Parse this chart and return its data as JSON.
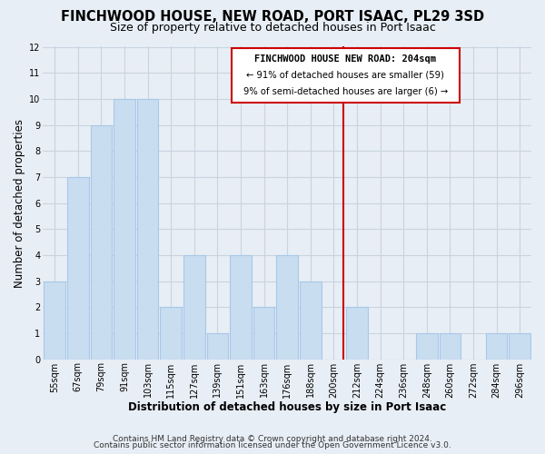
{
  "title": "FINCHWOOD HOUSE, NEW ROAD, PORT ISAAC, PL29 3SD",
  "subtitle": "Size of property relative to detached houses in Port Isaac",
  "xlabel": "Distribution of detached houses by size in Port Isaac",
  "ylabel": "Number of detached properties",
  "bar_labels": [
    "55sqm",
    "67sqm",
    "79sqm",
    "91sqm",
    "103sqm",
    "115sqm",
    "127sqm",
    "139sqm",
    "151sqm",
    "163sqm",
    "176sqm",
    "188sqm",
    "200sqm",
    "212sqm",
    "224sqm",
    "236sqm",
    "248sqm",
    "260sqm",
    "272sqm",
    "284sqm",
    "296sqm"
  ],
  "bar_values": [
    3,
    7,
    9,
    10,
    10,
    2,
    4,
    1,
    4,
    2,
    4,
    3,
    0,
    2,
    0,
    0,
    1,
    1,
    0,
    1,
    1
  ],
  "bar_color": "#c8ddf0",
  "bar_edge_color": "#a8c8e8",
  "ylim": [
    0,
    12
  ],
  "yticks": [
    0,
    1,
    2,
    3,
    4,
    5,
    6,
    7,
    8,
    9,
    10,
    11,
    12
  ],
  "vline_color": "#cc0000",
  "annotation_text_line1": "FINCHWOOD HOUSE NEW ROAD: 204sqm",
  "annotation_text_line2": "← 91% of detached houses are smaller (59)",
  "annotation_text_line3": "9% of semi-detached houses are larger (6) →",
  "footer_line1": "Contains HM Land Registry data © Crown copyright and database right 2024.",
  "footer_line2": "Contains public sector information licensed under the Open Government Licence v3.0.",
  "background_color": "#e8eef5",
  "plot_bg_color": "#e8eef5",
  "grid_color": "#c8d4e0",
  "title_fontsize": 10.5,
  "subtitle_fontsize": 9,
  "axis_label_fontsize": 8.5,
  "tick_fontsize": 7,
  "footer_fontsize": 6.5
}
